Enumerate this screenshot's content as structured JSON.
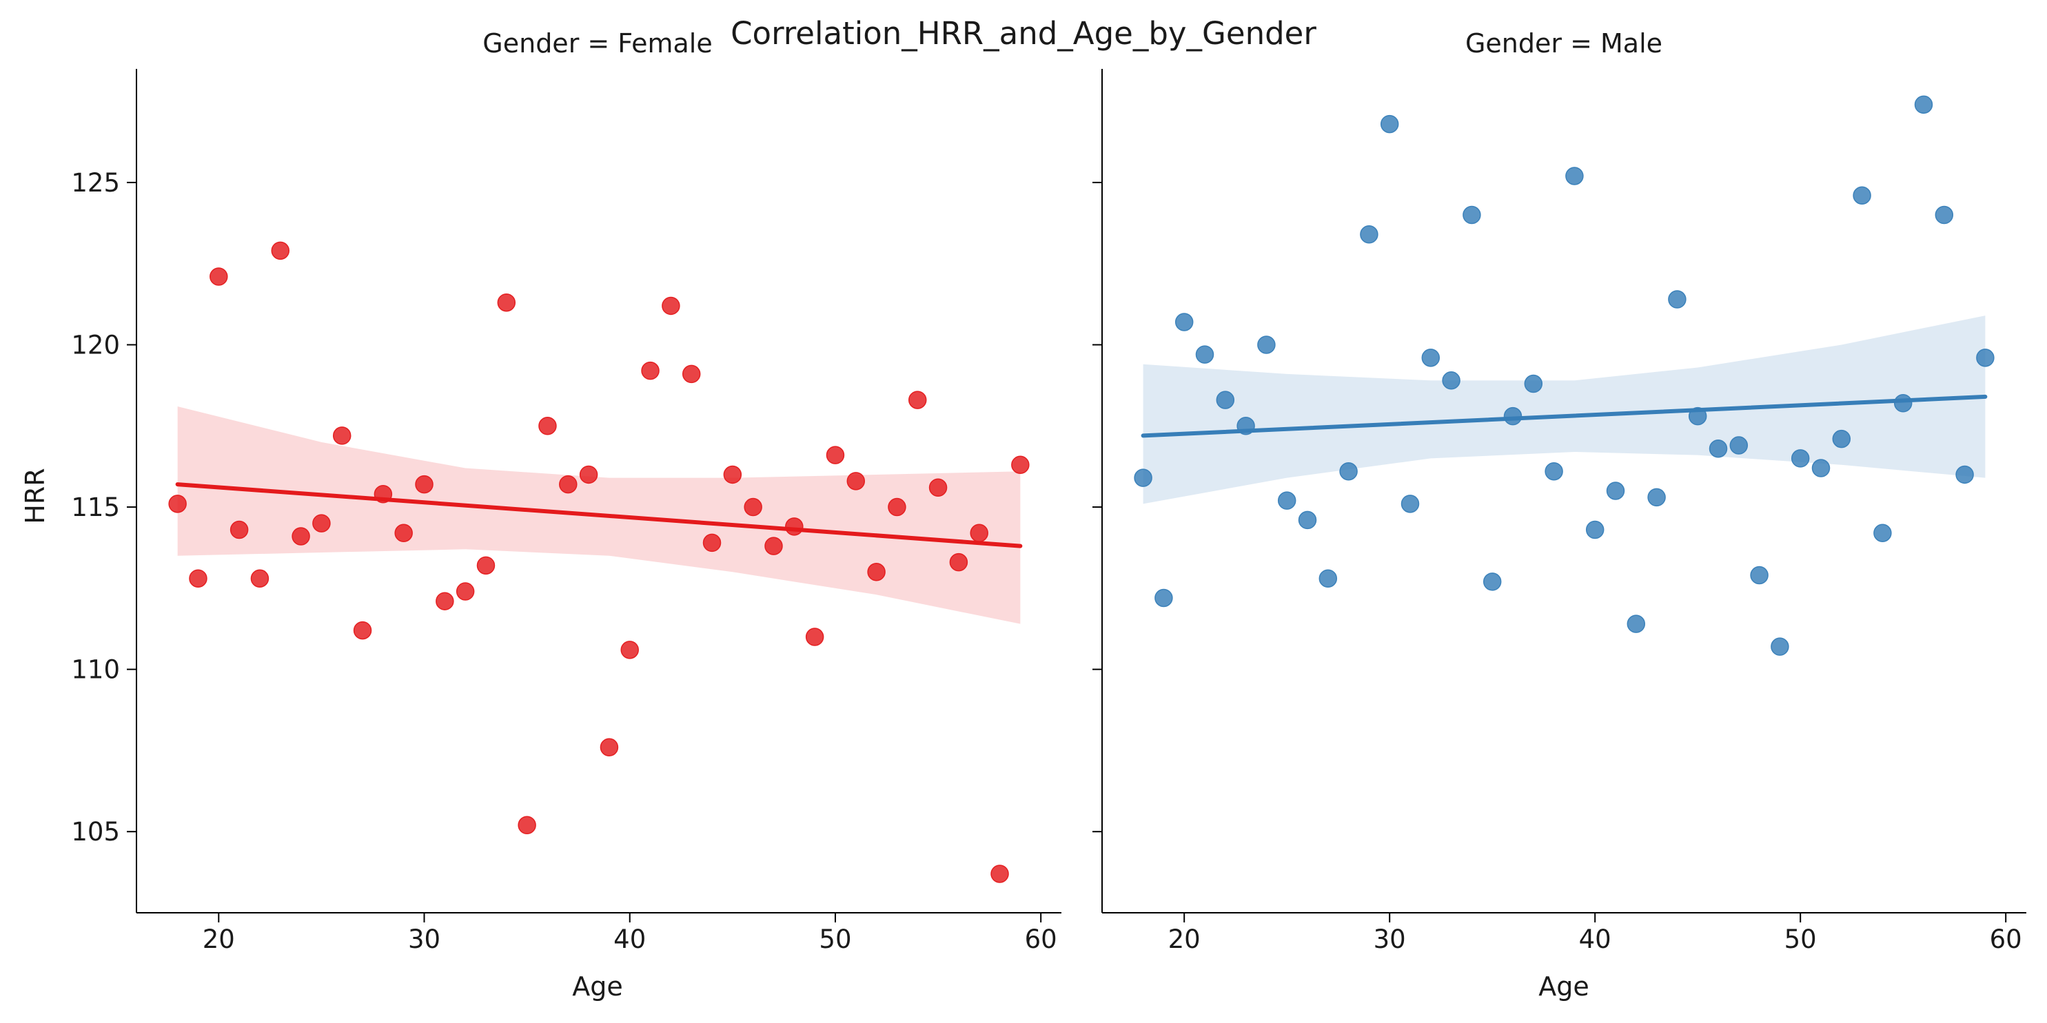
{
  "chart_data": {
    "type": "scatter",
    "title": "Correlation_HRR_and_Age_by_Gender",
    "ylabel": "HRR",
    "xlim": [
      16,
      61
    ],
    "ylim": [
      102.5,
      128.5
    ],
    "x_ticks": [
      "20",
      "30",
      "40",
      "50",
      "60"
    ],
    "y_ticks": [
      "105",
      "110",
      "115",
      "120",
      "125"
    ],
    "grid": false,
    "panels": [
      {
        "title": "Gender = Female",
        "xlabel": "Age",
        "color": "#e41a1c",
        "points": [
          [
            18,
            115.1
          ],
          [
            19,
            112.8
          ],
          [
            20,
            122.1
          ],
          [
            21,
            114.3
          ],
          [
            22,
            112.8
          ],
          [
            23,
            122.9
          ],
          [
            24,
            114.1
          ],
          [
            25,
            114.5
          ],
          [
            26,
            117.2
          ],
          [
            27,
            111.2
          ],
          [
            28,
            115.4
          ],
          [
            29,
            114.2
          ],
          [
            30,
            115.7
          ],
          [
            31,
            112.1
          ],
          [
            32,
            112.4
          ],
          [
            33,
            113.2
          ],
          [
            34,
            121.3
          ],
          [
            35,
            105.2
          ],
          [
            36,
            117.5
          ],
          [
            37,
            115.7
          ],
          [
            38,
            116.0
          ],
          [
            39,
            107.6
          ],
          [
            40,
            110.6
          ],
          [
            41,
            119.2
          ],
          [
            42,
            121.2
          ],
          [
            43,
            119.1
          ],
          [
            44,
            113.9
          ],
          [
            45,
            116.0
          ],
          [
            46,
            115.0
          ],
          [
            47,
            113.8
          ],
          [
            48,
            114.4
          ],
          [
            49,
            111.0
          ],
          [
            50,
            116.6
          ],
          [
            51,
            115.8
          ],
          [
            52,
            113.0
          ],
          [
            53,
            115.0
          ],
          [
            54,
            118.3
          ],
          [
            55,
            115.6
          ],
          [
            56,
            113.3
          ],
          [
            57,
            114.2
          ],
          [
            58,
            103.7
          ],
          [
            59,
            116.3
          ]
        ],
        "fit": {
          "x": [
            18,
            59
          ],
          "y": [
            115.7,
            113.8
          ]
        },
        "ci_upper": [
          [
            18,
            118.1
          ],
          [
            25,
            117.0
          ],
          [
            32,
            116.2
          ],
          [
            39,
            115.9
          ],
          [
            45,
            115.9
          ],
          [
            52,
            116.0
          ],
          [
            59,
            116.1
          ]
        ],
        "ci_lower": [
          [
            18,
            113.5
          ],
          [
            25,
            113.6
          ],
          [
            32,
            113.7
          ],
          [
            39,
            113.5
          ],
          [
            45,
            113.0
          ],
          [
            52,
            112.3
          ],
          [
            59,
            111.4
          ]
        ]
      },
      {
        "title": "Gender = Male",
        "xlabel": "Age",
        "color": "#377eb8",
        "points": [
          [
            18,
            115.9
          ],
          [
            19,
            112.2
          ],
          [
            20,
            120.7
          ],
          [
            21,
            119.7
          ],
          [
            22,
            118.3
          ],
          [
            23,
            117.5
          ],
          [
            24,
            120.0
          ],
          [
            25,
            115.2
          ],
          [
            26,
            114.6
          ],
          [
            27,
            112.8
          ],
          [
            28,
            116.1
          ],
          [
            29,
            123.4
          ],
          [
            30,
            126.8
          ],
          [
            31,
            115.1
          ],
          [
            32,
            119.6
          ],
          [
            33,
            118.9
          ],
          [
            34,
            124.0
          ],
          [
            35,
            112.7
          ],
          [
            36,
            117.8
          ],
          [
            37,
            118.8
          ],
          [
            38,
            116.1
          ],
          [
            39,
            125.2
          ],
          [
            40,
            114.3
          ],
          [
            41,
            115.5
          ],
          [
            42,
            111.4
          ],
          [
            43,
            115.3
          ],
          [
            44,
            121.4
          ],
          [
            45,
            117.8
          ],
          [
            46,
            116.8
          ],
          [
            47,
            116.9
          ],
          [
            48,
            112.9
          ],
          [
            49,
            110.7
          ],
          [
            50,
            116.5
          ],
          [
            51,
            116.2
          ],
          [
            52,
            117.1
          ],
          [
            53,
            124.6
          ],
          [
            54,
            114.2
          ],
          [
            55,
            118.2
          ],
          [
            56,
            127.4
          ],
          [
            57,
            124.0
          ],
          [
            58,
            116.0
          ],
          [
            59,
            119.6
          ]
        ],
        "fit": {
          "x": [
            18,
            59
          ],
          "y": [
            117.2,
            118.4
          ]
        },
        "ci_upper": [
          [
            18,
            119.4
          ],
          [
            25,
            119.1
          ],
          [
            32,
            118.9
          ],
          [
            39,
            118.9
          ],
          [
            45,
            119.3
          ],
          [
            52,
            120.0
          ],
          [
            59,
            120.9
          ]
        ],
        "ci_lower": [
          [
            18,
            115.1
          ],
          [
            25,
            115.9
          ],
          [
            32,
            116.5
          ],
          [
            39,
            116.7
          ],
          [
            45,
            116.6
          ],
          [
            52,
            116.3
          ],
          [
            59,
            115.9
          ]
        ]
      }
    ]
  }
}
